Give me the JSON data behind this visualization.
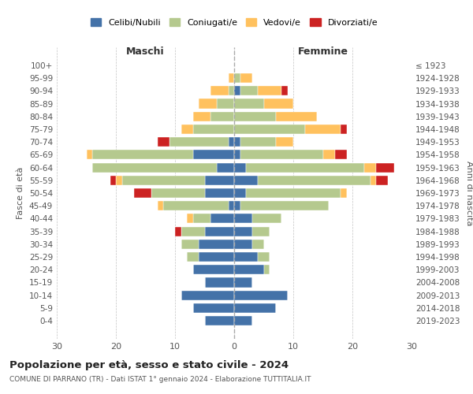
{
  "age_groups": [
    "0-4",
    "5-9",
    "10-14",
    "15-19",
    "20-24",
    "25-29",
    "30-34",
    "35-39",
    "40-44",
    "45-49",
    "50-54",
    "55-59",
    "60-64",
    "65-69",
    "70-74",
    "75-79",
    "80-84",
    "85-89",
    "90-94",
    "95-99",
    "100+"
  ],
  "birth_years": [
    "2019-2023",
    "2014-2018",
    "2009-2013",
    "2004-2008",
    "1999-2003",
    "1994-1998",
    "1989-1993",
    "1984-1988",
    "1979-1983",
    "1974-1978",
    "1969-1973",
    "1964-1968",
    "1959-1963",
    "1954-1958",
    "1949-1953",
    "1944-1948",
    "1939-1943",
    "1934-1938",
    "1929-1933",
    "1924-1928",
    "≤ 1923"
  ],
  "males": {
    "celibi": [
      5,
      7,
      9,
      5,
      7,
      6,
      6,
      5,
      4,
      1,
      5,
      5,
      3,
      7,
      1,
      0,
      0,
      0,
      0,
      0,
      0
    ],
    "coniugati": [
      0,
      0,
      0,
      0,
      0,
      2,
      3,
      4,
      3,
      11,
      9,
      14,
      21,
      17,
      10,
      7,
      4,
      3,
      1,
      0,
      0
    ],
    "vedovi": [
      0,
      0,
      0,
      0,
      0,
      0,
      0,
      0,
      1,
      1,
      0,
      1,
      0,
      1,
      0,
      2,
      3,
      3,
      3,
      1,
      0
    ],
    "divorziati": [
      0,
      0,
      0,
      0,
      0,
      0,
      0,
      1,
      0,
      0,
      3,
      1,
      0,
      0,
      2,
      0,
      0,
      0,
      0,
      0,
      0
    ]
  },
  "females": {
    "nubili": [
      3,
      7,
      9,
      3,
      5,
      4,
      3,
      3,
      3,
      1,
      2,
      4,
      2,
      1,
      1,
      0,
      0,
      0,
      1,
      0,
      0
    ],
    "coniugate": [
      0,
      0,
      0,
      0,
      1,
      2,
      2,
      3,
      5,
      15,
      16,
      19,
      20,
      14,
      6,
      12,
      7,
      5,
      3,
      1,
      0
    ],
    "vedove": [
      0,
      0,
      0,
      0,
      0,
      0,
      0,
      0,
      0,
      0,
      1,
      1,
      2,
      2,
      3,
      6,
      7,
      5,
      4,
      2,
      0
    ],
    "divorziate": [
      0,
      0,
      0,
      0,
      0,
      0,
      0,
      0,
      0,
      0,
      0,
      2,
      3,
      2,
      0,
      1,
      0,
      0,
      1,
      0,
      0
    ]
  },
  "colors": {
    "celibi": "#4472a8",
    "coniugati": "#b5c98e",
    "vedovi": "#ffc15e",
    "divorziati": "#cc2222"
  },
  "xlim": 30,
  "title": "Popolazione per età, sesso e stato civile - 2024",
  "subtitle": "COMUNE DI PARRANO (TR) - Dati ISTAT 1° gennaio 2024 - Elaborazione TUTTITALIA.IT",
  "ylabel_left": "Fasce di età",
  "ylabel_right": "Anni di nascita",
  "xlabel_left": "Maschi",
  "xlabel_right": "Femmine"
}
